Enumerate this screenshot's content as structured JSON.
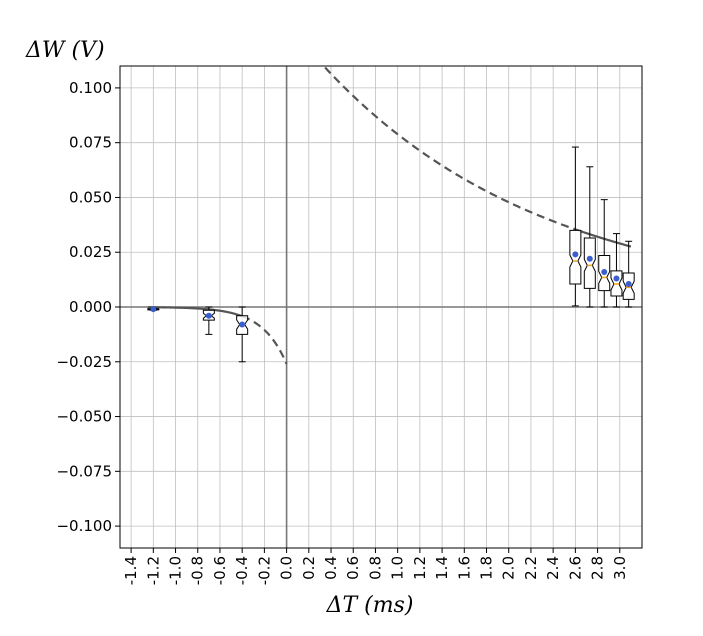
{
  "chart_data": {
    "type": "box",
    "title": "",
    "xlabel": "ΔT (ms)",
    "ylabel": "ΔW (V)",
    "xlim": [
      -1.5,
      3.2
    ],
    "ylim": [
      -0.11,
      0.11
    ],
    "grid": true,
    "x_ticks": [
      -1.4,
      -1.2,
      -1.0,
      -0.8,
      -0.6,
      -0.4,
      -0.2,
      0.0,
      0.2,
      0.4,
      0.6,
      0.8,
      1.0,
      1.2,
      1.4,
      1.6,
      1.8,
      2.0,
      2.2,
      2.4,
      2.6,
      2.8,
      3.0
    ],
    "x_tick_labels": [
      "-1.4",
      "-1.2",
      "-1.0",
      "-0.8",
      "-0.6",
      "-0.4",
      "-0.2",
      "0.0",
      "0.2",
      "0.4",
      "0.6",
      "0.8",
      "1.0",
      "1.2",
      "1.4",
      "1.6",
      "1.8",
      "2.0",
      "2.2",
      "2.4",
      "2.6",
      "2.8",
      "3.0"
    ],
    "y_ticks": [
      -0.1,
      -0.075,
      -0.05,
      -0.025,
      0.0,
      0.025,
      0.05,
      0.075,
      0.1
    ],
    "y_tick_labels": [
      "−0.100",
      "−0.075",
      "−0.050",
      "−0.025",
      "0.000",
      "0.025",
      "0.050",
      "0.075",
      "0.100"
    ],
    "boxes": [
      {
        "x": -1.2,
        "whislo": -0.0015,
        "q1": -0.0013,
        "med": -0.001,
        "q3": -0.0008,
        "whishi": -0.0006,
        "mean": -0.001
      },
      {
        "x": -0.7,
        "whislo": -0.0125,
        "q1": -0.006,
        "med": -0.004,
        "q3": -0.0015,
        "whishi": 0.0,
        "mean": -0.004
      },
      {
        "x": -0.4,
        "whislo": -0.025,
        "q1": -0.0125,
        "med": -0.008,
        "q3": -0.004,
        "whishi": 0.0,
        "mean": -0.008
      },
      {
        "x": 2.6,
        "whislo": 0.0005,
        "q1": 0.0105,
        "med": 0.021,
        "q3": 0.035,
        "whishi": 0.073,
        "mean": 0.024
      },
      {
        "x": 2.73,
        "whislo": 0.0,
        "q1": 0.0085,
        "med": 0.019,
        "q3": 0.0315,
        "whishi": 0.064,
        "mean": 0.022
      },
      {
        "x": 2.86,
        "whislo": 0.0,
        "q1": 0.0075,
        "med": 0.0135,
        "q3": 0.0235,
        "whishi": 0.049,
        "mean": 0.016
      },
      {
        "x": 2.97,
        "whislo": 0.0,
        "q1": 0.005,
        "med": 0.0105,
        "q3": 0.0165,
        "whishi": 0.0335,
        "mean": 0.013
      },
      {
        "x": 3.08,
        "whislo": 0.0,
        "q1": 0.0035,
        "med": 0.009,
        "q3": 0.0155,
        "whishi": 0.03,
        "mean": 0.0105
      }
    ],
    "fit_curves": {
      "negative_branch": {
        "A": -0.026,
        "tau": 0.22
      },
      "positive_branch": {
        "A": 0.13,
        "tau": 2.0
      }
    },
    "colors": {
      "mean_marker": "#3a5fcd",
      "median_line": "#f5a623",
      "fit_line": "#555555",
      "grid": "#bfbfbf",
      "box_edge": "#000000"
    }
  }
}
